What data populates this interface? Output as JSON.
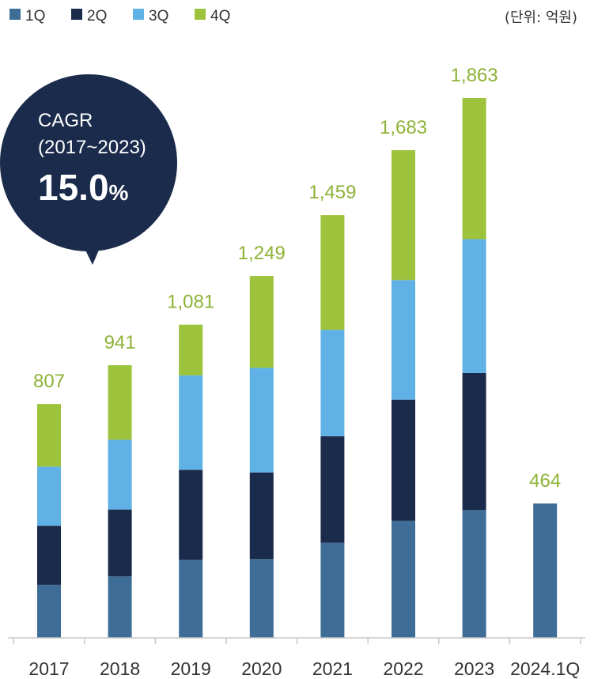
{
  "unit_label": "(단위: 억원)",
  "callout": {
    "title": "CAGR",
    "period": "(2017~2023)",
    "value": "15.0",
    "unit": "%"
  },
  "chart_data": {
    "type": "bar",
    "stacked": true,
    "categories": [
      "2017",
      "2018",
      "2019",
      "2020",
      "2021",
      "2022",
      "2023",
      "2024.1Q"
    ],
    "series": [
      {
        "name": "1Q",
        "color": "#3e6e97",
        "values": [
          183,
          212,
          270,
          272,
          328,
          404,
          441,
          464
        ]
      },
      {
        "name": "2Q",
        "color": "#1b2b4c",
        "values": [
          204,
          231,
          310,
          299,
          368,
          418,
          473,
          null
        ]
      },
      {
        "name": "3Q",
        "color": "#5fb1e6",
        "values": [
          204,
          241,
          326,
          361,
          367,
          413,
          462,
          null
        ]
      },
      {
        "name": "4Q",
        "color": "#9dc23b",
        "values": [
          216,
          257,
          175,
          317,
          396,
          448,
          487,
          null
        ]
      }
    ],
    "totals": [
      "807",
      "941",
      "1,081",
      "1,249",
      "1,459",
      "1,683",
      "1,863",
      "464"
    ],
    "total_label_color": "#8db336",
    "ylim": [
      0,
      1863
    ],
    "grid": false,
    "legend": "top-left"
  }
}
